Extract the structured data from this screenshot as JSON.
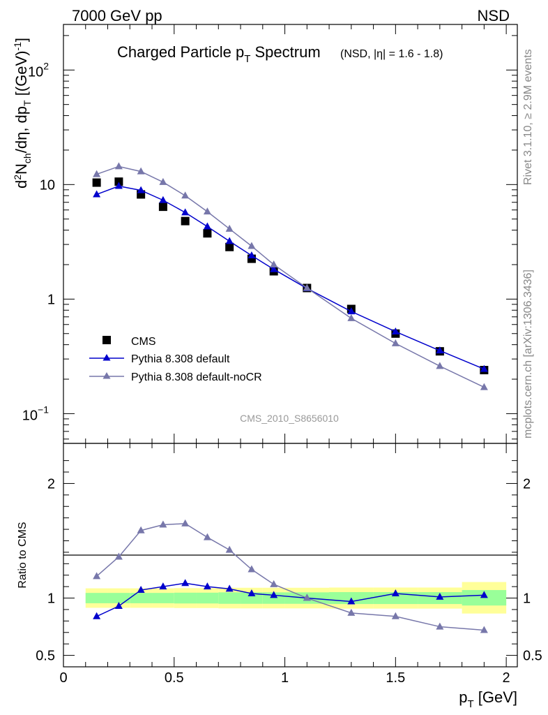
{
  "header": {
    "left_text": "7000 GeV pp",
    "right_text": "NSD"
  },
  "side": {
    "rivet_text": "Rivet 3.1.10, ≥ 2.9M events",
    "mcplots_text": "mcplots.cern.ch [arXiv:1306.3436]"
  },
  "chart_data": [
    {
      "type": "scatter",
      "panel": "main",
      "title": {
        "main": "Charged Particle p",
        "main_sub": "T",
        "main_after": " Spectrum",
        "qualifier": "(NSD, |η| = 1.6 - 1.8)"
      },
      "ylabel": {
        "p1": "d",
        "sup1": "2",
        "p2": "N",
        "sub1": "ch",
        "p3": "/dη, dp",
        "sub2": "T",
        "p4": " [(GeV)",
        "sup2": "-1",
        "p5": "]"
      },
      "watermark": "CMS_2010_S8656010",
      "yscale": "log",
      "ylim": [
        0.055,
        250
      ],
      "xlim": [
        0,
        2.05
      ],
      "y_ticks": [
        {
          "value": 0.1,
          "base": "10",
          "exp": "−1"
        },
        {
          "value": 1,
          "base": "1",
          "exp": ""
        },
        {
          "value": 10,
          "base": "10",
          "exp": ""
        },
        {
          "value": 100,
          "base": "10",
          "exp": "2"
        }
      ],
      "legend": {
        "placement": "bottom-left",
        "entries": [
          "CMS",
          "Pythia 8.308 default",
          "Pythia 8.308 default-noCR"
        ]
      },
      "series": [
        {
          "name": "CMS",
          "color": "#000000",
          "marker": "square",
          "x": [
            0.15,
            0.25,
            0.35,
            0.45,
            0.55,
            0.65,
            0.75,
            0.85,
            0.95,
            1.1,
            1.3,
            1.5,
            1.7,
            1.9
          ],
          "y": [
            10.4,
            10.6,
            8.2,
            6.4,
            4.8,
            3.75,
            2.85,
            2.25,
            1.75,
            1.25,
            0.82,
            0.5,
            0.35,
            0.24
          ]
        },
        {
          "name": "Pythia 8.308 default",
          "color": "#0000cc",
          "marker": "triangle",
          "x": [
            0.15,
            0.25,
            0.35,
            0.45,
            0.55,
            0.65,
            0.75,
            0.85,
            0.95,
            1.1,
            1.3,
            1.5,
            1.7,
            1.9
          ],
          "y": [
            8.2,
            9.7,
            8.9,
            7.3,
            5.7,
            4.3,
            3.2,
            2.4,
            1.82,
            1.24,
            0.78,
            0.52,
            0.355,
            0.245
          ]
        },
        {
          "name": "Pythia 8.308 default-noCR",
          "color": "#7777aa",
          "marker": "triangle",
          "x": [
            0.15,
            0.25,
            0.35,
            0.45,
            0.55,
            0.65,
            0.75,
            0.85,
            0.95,
            1.1,
            1.3,
            1.5,
            1.7,
            1.9
          ],
          "y": [
            12.3,
            14.4,
            13.0,
            10.5,
            8.0,
            5.8,
            4.1,
            2.9,
            2.0,
            1.25,
            0.68,
            0.41,
            0.26,
            0.17
          ]
        }
      ]
    },
    {
      "type": "line",
      "panel": "ratio",
      "ylabel": "Ratio to CMS",
      "xlabel": {
        "p": "p",
        "sub": "T",
        "after": " [GeV]"
      },
      "ylim": [
        0.4,
        2.35
      ],
      "xlim": [
        0,
        2.05
      ],
      "y_ticks": [
        {
          "value": 0.5,
          "label": "0.5"
        },
        {
          "value": 1,
          "label": "1"
        },
        {
          "value": 2,
          "label": "2"
        }
      ],
      "x_ticks": [
        {
          "value": 0,
          "label": "0"
        },
        {
          "value": 0.5,
          "label": "0.5"
        },
        {
          "value": 1,
          "label": "1"
        },
        {
          "value": 1.5,
          "label": "1.5"
        },
        {
          "value": 2,
          "label": "2"
        }
      ],
      "bands": {
        "yellow_color": "#ffff99",
        "green_color": "#99ff99",
        "bins": [
          {
            "x0": 0.1,
            "x1": 0.2,
            "y_lo": 0.915,
            "y_hi": 1.085,
            "g_lo": 0.955,
            "g_hi": 1.045
          },
          {
            "x0": 0.2,
            "x1": 0.3,
            "y_lo": 0.915,
            "y_hi": 1.085,
            "g_lo": 0.955,
            "g_hi": 1.045
          },
          {
            "x0": 0.3,
            "x1": 0.4,
            "y_lo": 0.915,
            "y_hi": 1.085,
            "g_lo": 0.955,
            "g_hi": 1.045
          },
          {
            "x0": 0.4,
            "x1": 0.5,
            "y_lo": 0.915,
            "y_hi": 1.085,
            "g_lo": 0.955,
            "g_hi": 1.045
          },
          {
            "x0": 0.5,
            "x1": 0.6,
            "y_lo": 0.913,
            "y_hi": 1.087,
            "g_lo": 0.953,
            "g_hi": 1.047
          },
          {
            "x0": 0.6,
            "x1": 0.7,
            "y_lo": 0.913,
            "y_hi": 1.087,
            "g_lo": 0.953,
            "g_hi": 1.047
          },
          {
            "x0": 0.7,
            "x1": 0.8,
            "y_lo": 0.91,
            "y_hi": 1.09,
            "g_lo": 0.95,
            "g_hi": 1.05
          },
          {
            "x0": 0.8,
            "x1": 0.9,
            "y_lo": 0.91,
            "y_hi": 1.09,
            "g_lo": 0.95,
            "g_hi": 1.05
          },
          {
            "x0": 0.9,
            "x1": 1.0,
            "y_lo": 0.91,
            "y_hi": 1.09,
            "g_lo": 0.95,
            "g_hi": 1.05
          },
          {
            "x0": 1.0,
            "x1": 1.2,
            "y_lo": 0.91,
            "y_hi": 1.09,
            "g_lo": 0.95,
            "g_hi": 1.05
          },
          {
            "x0": 1.2,
            "x1": 1.4,
            "y_lo": 0.908,
            "y_hi": 1.092,
            "g_lo": 0.948,
            "g_hi": 1.052
          },
          {
            "x0": 1.4,
            "x1": 1.6,
            "y_lo": 0.908,
            "y_hi": 1.092,
            "g_lo": 0.948,
            "g_hi": 1.052
          },
          {
            "x0": 1.6,
            "x1": 1.8,
            "y_lo": 0.908,
            "y_hi": 1.092,
            "g_lo": 0.948,
            "g_hi": 1.052
          },
          {
            "x0": 1.8,
            "x1": 2.0,
            "y_lo": 0.865,
            "y_hi": 1.14,
            "g_lo": 0.935,
            "g_hi": 1.07
          }
        ]
      },
      "series": [
        {
          "name": "Pythia 8.308 default",
          "color": "#0000cc",
          "marker": "triangle",
          "x": [
            0.15,
            0.25,
            0.35,
            0.45,
            0.55,
            0.65,
            0.75,
            0.85,
            0.95,
            1.1,
            1.3,
            1.5,
            1.7,
            1.9
          ],
          "y": [
            0.84,
            0.93,
            1.07,
            1.1,
            1.13,
            1.1,
            1.08,
            1.04,
            1.025,
            1.0,
            0.97,
            1.04,
            1.01,
            1.025
          ]
        },
        {
          "name": "Pythia 8.308 default-noCR",
          "color": "#7777aa",
          "marker": "triangle",
          "x": [
            0.15,
            0.25,
            0.35,
            0.45,
            0.55,
            0.65,
            0.75,
            0.85,
            0.95,
            1.1,
            1.3,
            1.5,
            1.7,
            1.9
          ],
          "y": [
            1.19,
            1.36,
            1.59,
            1.64,
            1.65,
            1.53,
            1.42,
            1.25,
            1.12,
            1.0,
            0.87,
            0.84,
            0.75,
            0.72
          ]
        }
      ]
    }
  ]
}
